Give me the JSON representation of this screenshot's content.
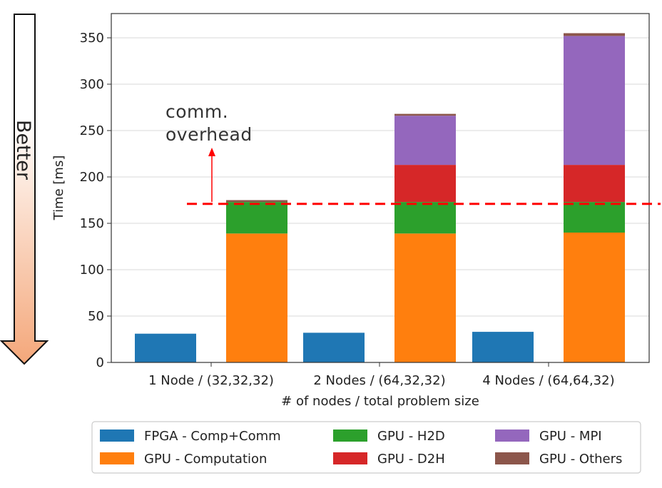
{
  "chart_data": {
    "type": "bar",
    "stacked": true,
    "title": "",
    "xlabel": "# of nodes / total problem size",
    "ylabel": "Time [ms]",
    "ylim": [
      0,
      370
    ],
    "yticks": [
      0,
      50,
      100,
      150,
      200,
      250,
      300,
      350
    ],
    "grid": "horizontal",
    "categories": [
      "1 Node / (32,32,32)",
      "2 Nodes / (64,32,32)",
      "4 Nodes / (64,64,32)"
    ],
    "fpga": {
      "name": "FPGA - Comp+Comm",
      "color": "#1f77b4",
      "values": [
        31,
        32,
        33
      ]
    },
    "gpu_series": [
      {
        "name": "GPU - Computation",
        "color": "#ff7f0e",
        "values": [
          139,
          139,
          140
        ]
      },
      {
        "name": "GPU - H2D",
        "color": "#2ca02c",
        "values": [
          34,
          34,
          33
        ]
      },
      {
        "name": "GPU - D2H",
        "color": "#d62728",
        "values": [
          0,
          40,
          40
        ]
      },
      {
        "name": "GPU - MPI",
        "color": "#9467bd",
        "values": [
          0,
          53,
          139
        ]
      },
      {
        "name": "GPU - Others",
        "color": "#8c564b",
        "values": [
          2,
          2,
          3
        ]
      }
    ],
    "reference_line": {
      "value": 171,
      "color": "#ff0000",
      "style": "dashed"
    },
    "annotation": {
      "lines": [
        "comm.",
        "overhead"
      ],
      "arrow_color": "#ff0000"
    },
    "legend": {
      "position": "bottom",
      "columns": 3,
      "order": [
        "FPGA - Comp+Comm",
        "GPU - Computation",
        "GPU - H2D",
        "GPU - D2H",
        "GPU - MPI",
        "GPU - Others"
      ]
    },
    "side_arrow": {
      "label": "Better",
      "direction": "down"
    }
  }
}
